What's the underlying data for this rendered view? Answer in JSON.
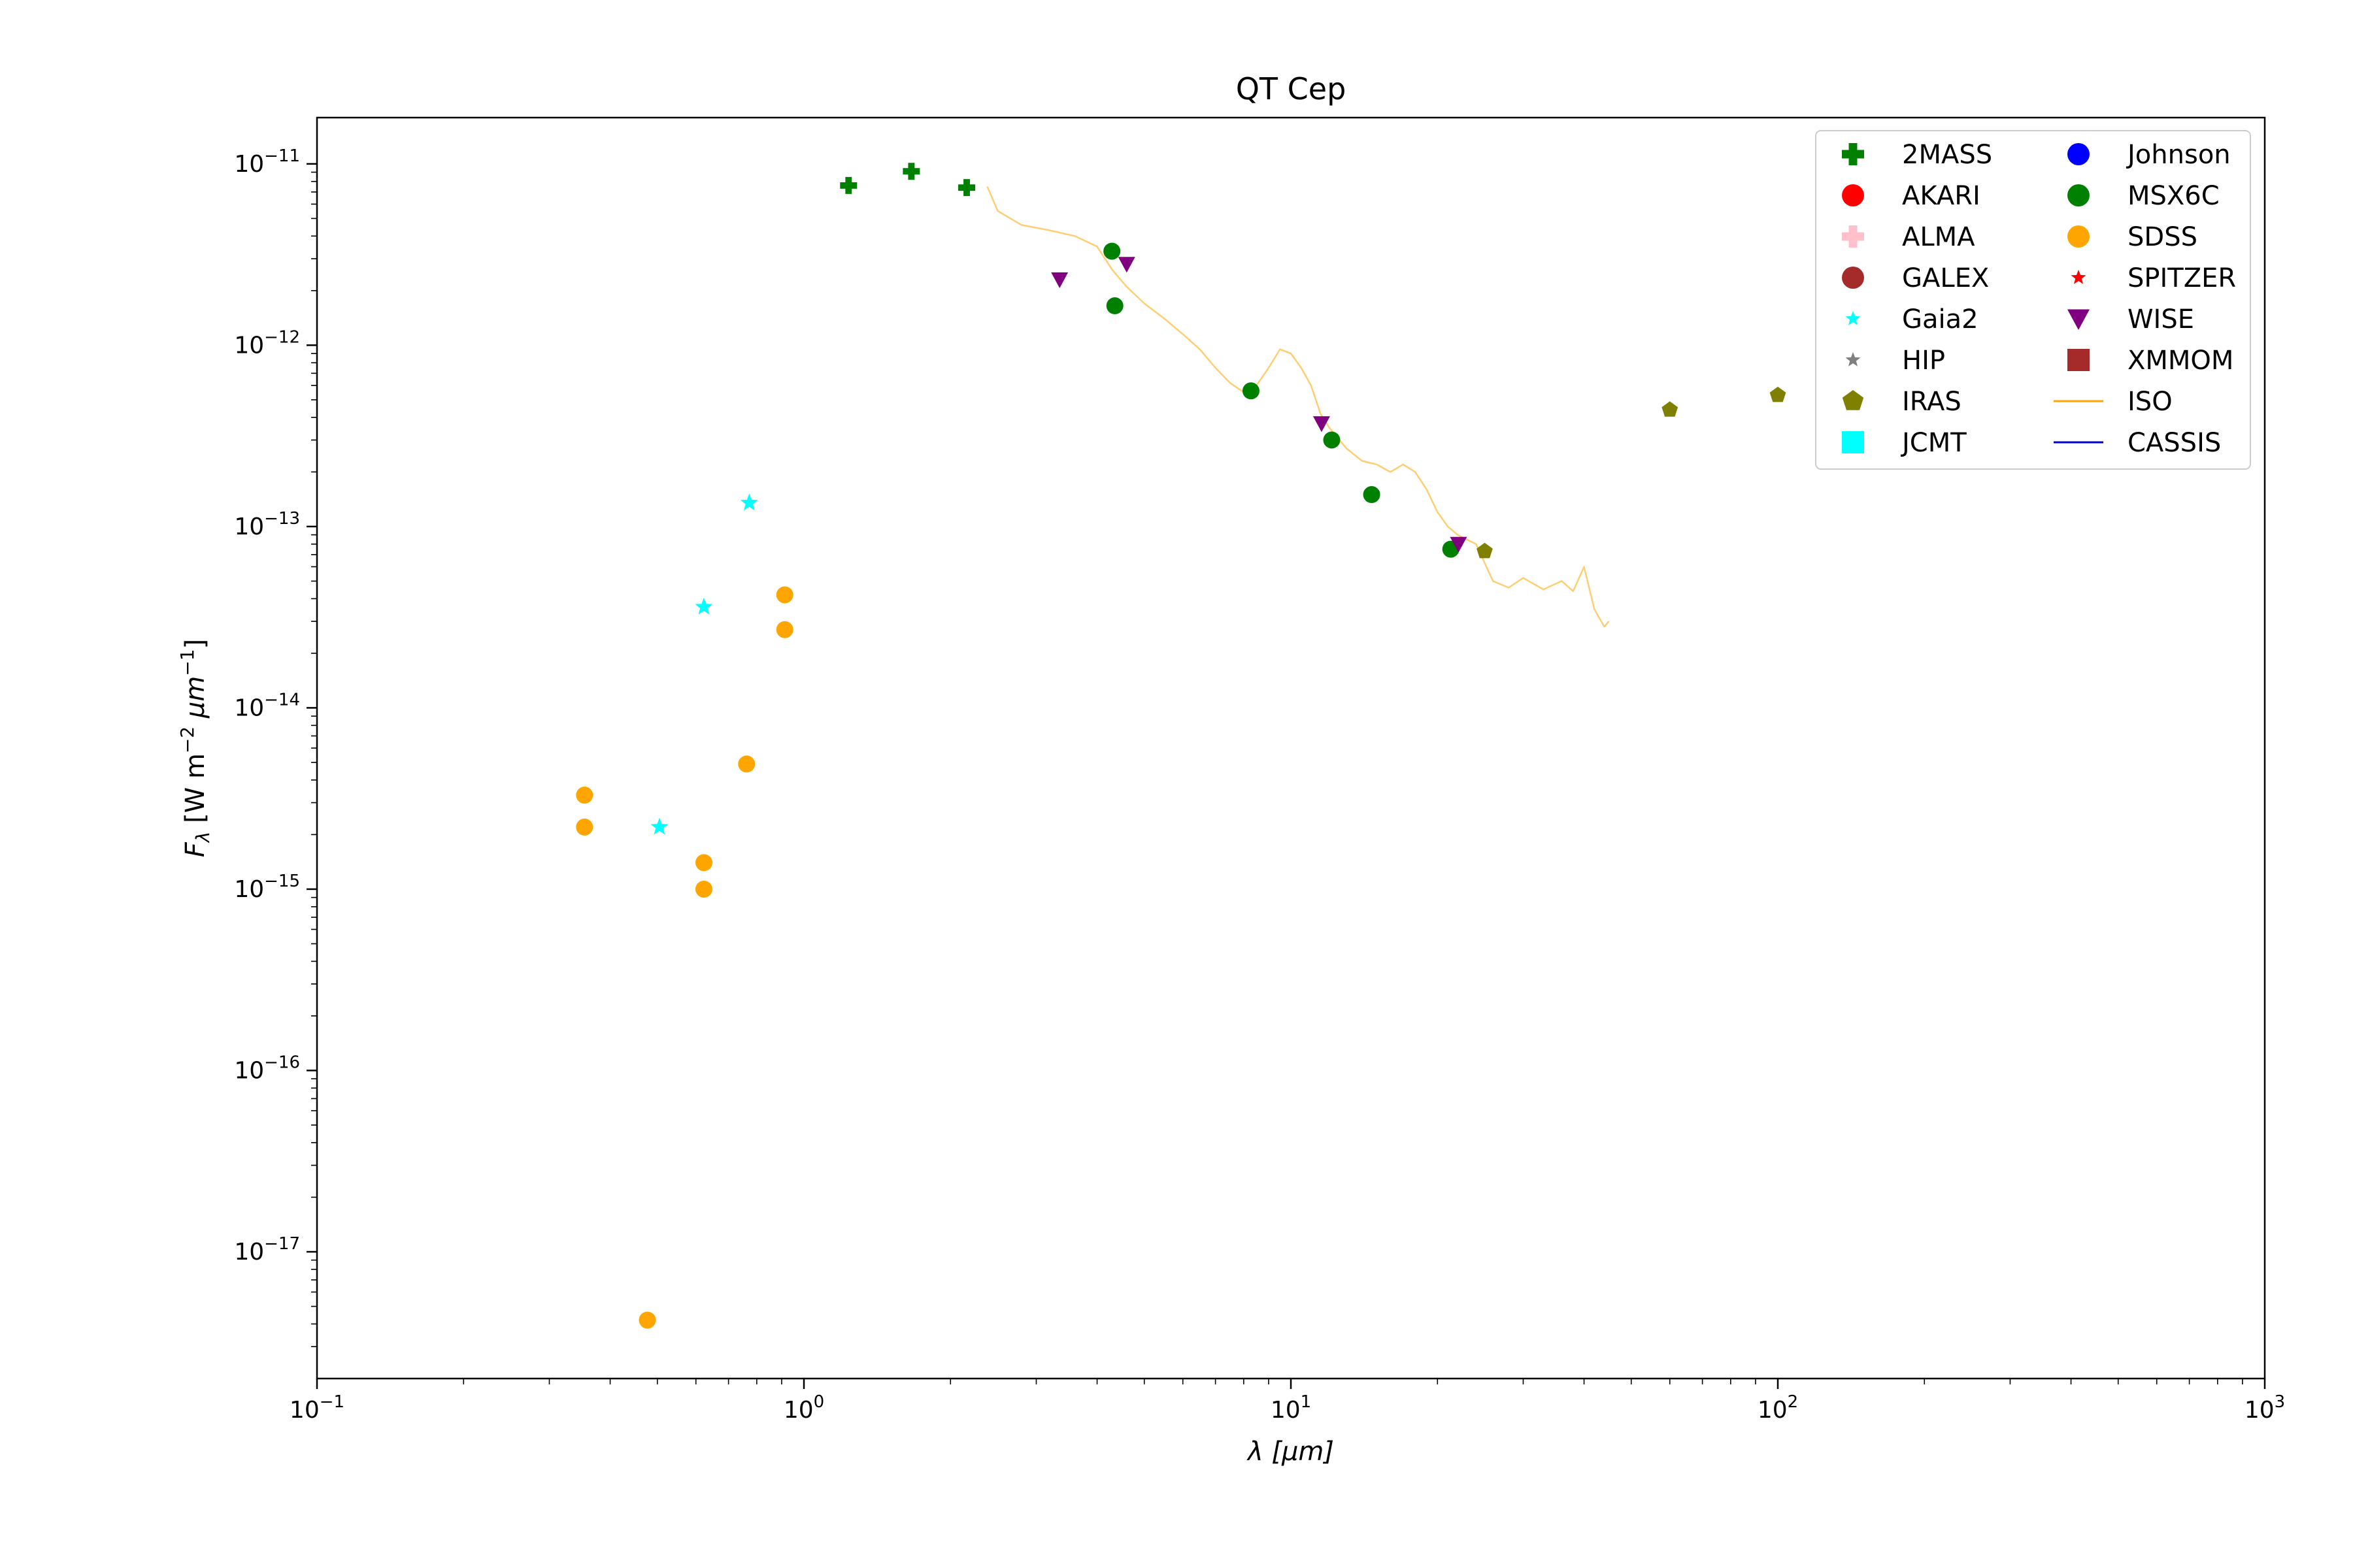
{
  "chart_data": {
    "type": "scatter",
    "title": "QT Cep",
    "xlabel_symbol": "λ",
    "xlabel_unit": "[μm]",
    "ylabel_symbol": "F",
    "ylabel_sub": "λ",
    "ylabel_unit": "[W m",
    "ylabel_exp1": "−2",
    "ylabel_mid": "μm",
    "ylabel_exp2": "−1",
    "ylabel_close": "]",
    "xscale": "log",
    "yscale": "log",
    "xlim": [
      0.1,
      1000
    ],
    "ylim": [
      2e-18,
      1.8e-11
    ],
    "grid": false,
    "legend_position": "top-right",
    "x_ticks": [
      {
        "value": 0.1,
        "base": "10",
        "exp": "−1"
      },
      {
        "value": 1,
        "base": "10",
        "exp": "0"
      },
      {
        "value": 10,
        "base": "10",
        "exp": "1"
      },
      {
        "value": 100,
        "base": "10",
        "exp": "2"
      },
      {
        "value": 1000,
        "base": "10",
        "exp": "3"
      }
    ],
    "y_ticks": [
      {
        "value": 1e-17,
        "base": "10",
        "exp": "−17"
      },
      {
        "value": 1e-16,
        "base": "10",
        "exp": "−16"
      },
      {
        "value": 1e-15,
        "base": "10",
        "exp": "−15"
      },
      {
        "value": 1e-14,
        "base": "10",
        "exp": "−14"
      },
      {
        "value": 1e-13,
        "base": "10",
        "exp": "−13"
      },
      {
        "value": 1e-12,
        "base": "10",
        "exp": "−12"
      },
      {
        "value": 1e-11,
        "base": "10",
        "exp": "−11"
      }
    ],
    "series": [
      {
        "name": "2MASS",
        "marker": "plus",
        "color": "#008000",
        "points": [
          [
            1.235,
            7.6e-12
          ],
          [
            1.662,
            9.1e-12
          ],
          [
            2.159,
            7.4e-12
          ]
        ]
      },
      {
        "name": "AKARI",
        "marker": "circle",
        "color": "#ff0000",
        "points": []
      },
      {
        "name": "ALMA",
        "marker": "plus",
        "color": "#ffc0cb",
        "points": []
      },
      {
        "name": "GALEX",
        "marker": "circle",
        "color": "#a52a2a",
        "points": []
      },
      {
        "name": "Gaia2",
        "marker": "star",
        "color": "#00ffff",
        "points": [
          [
            0.505,
            2.2e-15
          ],
          [
            0.623,
            3.6e-14
          ],
          [
            0.772,
            1.35e-13
          ]
        ]
      },
      {
        "name": "HIP",
        "marker": "star",
        "color": "#808080",
        "points": []
      },
      {
        "name": "IRAS",
        "marker": "pentagon",
        "color": "#808000",
        "points": [
          [
            25,
            7.3e-14
          ],
          [
            60,
            4.4e-13
          ],
          [
            100,
            5.3e-13
          ]
        ]
      },
      {
        "name": "JCMT",
        "marker": "square",
        "color": "#00ffff",
        "points": []
      },
      {
        "name": "Johnson",
        "marker": "circle",
        "color": "#0000ff",
        "points": []
      },
      {
        "name": "MSX6C",
        "marker": "circle",
        "color": "#008000",
        "points": [
          [
            4.29,
            3.3e-12
          ],
          [
            4.35,
            1.65e-12
          ],
          [
            8.28,
            5.6e-13
          ],
          [
            12.13,
            3e-13
          ],
          [
            14.65,
            1.5e-13
          ],
          [
            21.3,
            7.5e-14
          ]
        ]
      },
      {
        "name": "SDSS",
        "marker": "circle",
        "color": "#ffa500",
        "points": [
          [
            0.3543,
            3.3e-15
          ],
          [
            0.3543,
            2.2e-15
          ],
          [
            0.477,
            4.2e-18
          ],
          [
            0.6231,
            1.4e-15
          ],
          [
            0.6231,
            1e-15
          ],
          [
            0.7625,
            4.9e-15
          ],
          [
            0.9134,
            4.2e-14
          ],
          [
            0.9134,
            2.7e-14
          ]
        ]
      },
      {
        "name": "SPITZER",
        "marker": "star",
        "color": "#ff0000",
        "points": []
      },
      {
        "name": "WISE",
        "marker": "triangle-down",
        "color": "#800080",
        "points": [
          [
            3.35,
            2.3e-12
          ],
          [
            4.6,
            2.8e-12
          ],
          [
            11.56,
            3.7e-13
          ],
          [
            22.09,
            8e-14
          ]
        ]
      },
      {
        "name": "XMMOM",
        "marker": "square",
        "color": "#a52a2a",
        "points": []
      },
      {
        "name": "ISO",
        "marker": "line",
        "color": "#ffa500",
        "points": [
          [
            2.38,
            7.5e-12
          ],
          [
            2.5,
            5.5e-12
          ],
          [
            2.8,
            4.6e-12
          ],
          [
            3.2,
            4.3e-12
          ],
          [
            3.6,
            4e-12
          ],
          [
            4.0,
            3.5e-12
          ],
          [
            4.3,
            2.6e-12
          ],
          [
            4.6,
            2.1e-12
          ],
          [
            5.0,
            1.7e-12
          ],
          [
            5.5,
            1.4e-12
          ],
          [
            6.0,
            1.15e-12
          ],
          [
            6.5,
            9.5e-13
          ],
          [
            7.0,
            7.5e-13
          ],
          [
            7.5,
            6.2e-13
          ],
          [
            8.0,
            5.5e-13
          ],
          [
            8.5,
            6e-13
          ],
          [
            9.0,
            7.5e-13
          ],
          [
            9.5,
            9.5e-13
          ],
          [
            10.0,
            9e-13
          ],
          [
            10.5,
            7.5e-13
          ],
          [
            11.0,
            6e-13
          ],
          [
            11.5,
            4.2e-13
          ],
          [
            12.0,
            3.5e-13
          ],
          [
            13.0,
            2.7e-13
          ],
          [
            14.0,
            2.3e-13
          ],
          [
            15.0,
            2.2e-13
          ],
          [
            16.0,
            2e-13
          ],
          [
            17.0,
            2.2e-13
          ],
          [
            18.0,
            2e-13
          ],
          [
            19.0,
            1.6e-13
          ],
          [
            20.0,
            1.2e-13
          ],
          [
            21.0,
            1e-13
          ],
          [
            22.0,
            9e-14
          ],
          [
            24.0,
            8e-14
          ],
          [
            26.0,
            5e-14
          ],
          [
            28.0,
            4.6e-14
          ],
          [
            30.0,
            5.2e-14
          ],
          [
            33.0,
            4.5e-14
          ],
          [
            36.0,
            5e-14
          ],
          [
            38.0,
            4.4e-14
          ],
          [
            40.0,
            6e-14
          ],
          [
            42.0,
            3.5e-14
          ],
          [
            44.0,
            2.8e-14
          ],
          [
            45.0,
            3e-14
          ]
        ]
      },
      {
        "name": "CASSIS",
        "marker": "line",
        "color": "#0000cc",
        "points": []
      }
    ]
  }
}
